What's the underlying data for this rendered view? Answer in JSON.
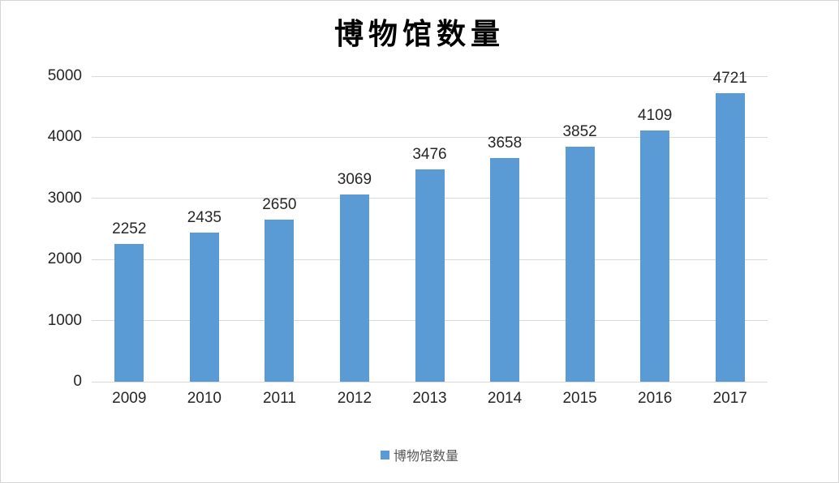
{
  "chart_data": {
    "type": "bar",
    "title": "博物馆数量",
    "categories": [
      "2009",
      "2010",
      "2011",
      "2012",
      "2013",
      "2014",
      "2015",
      "2016",
      "2017"
    ],
    "values": [
      2252,
      2435,
      2650,
      3069,
      3476,
      3658,
      3852,
      4109,
      4721
    ],
    "series": [
      {
        "name": "博物馆数量",
        "values": [
          2252,
          2435,
          2650,
          3069,
          3476,
          3658,
          3852,
          4109,
          4721
        ]
      }
    ],
    "xlabel": "",
    "ylabel": "",
    "ylim": [
      0,
      5000
    ],
    "yticks": [
      0,
      1000,
      2000,
      3000,
      4000,
      5000
    ],
    "grid": true,
    "data_labels": true,
    "legend": {
      "position": "bottom",
      "label": "博物馆数量"
    },
    "colors": {
      "bar": "#5B9BD5",
      "gridline": "#D9D9D9",
      "axis_line": "#D9D9D9",
      "label_text": "#262626",
      "legend_text": "#595959",
      "chart_border": "#D4D4D4",
      "background": "#FFFFFF"
    }
  }
}
